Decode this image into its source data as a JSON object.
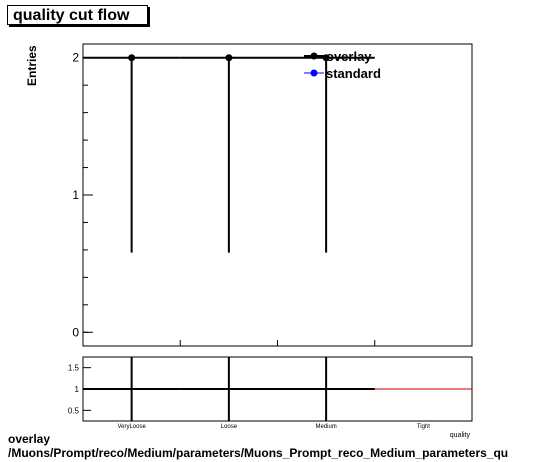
{
  "title": "quality cut flow",
  "ylabel": "Entries",
  "xlabel": "quality",
  "footer": {
    "line1": "overlay",
    "line2": "/Muons/Prompt/reco/Medium/parameters/Muons_Prompt_reco_Medium_parameters_qu"
  },
  "chart_data": [
    {
      "type": "line",
      "panel": "main",
      "categories": [
        "VeryLoose",
        "Loose",
        "Medium",
        "Tight"
      ],
      "series": [
        {
          "name": "overlay",
          "color": "#000000",
          "values": [
            2,
            2,
            2,
            null
          ],
          "error_low": [
            0.58,
            0.58,
            0.58,
            null
          ],
          "error_high": [
            2.0,
            2.0,
            2.0,
            null
          ]
        },
        {
          "name": "standard",
          "color": "#0000ff",
          "values": [
            2,
            2,
            2,
            null
          ]
        }
      ],
      "yticks": [
        0,
        1,
        2
      ],
      "ylim": [
        -0.1,
        2.1
      ],
      "legend": "top-right"
    },
    {
      "type": "line",
      "panel": "ratio",
      "categories": [
        "VeryLoose",
        "Loose",
        "Medium",
        "Tight"
      ],
      "series": [
        {
          "name": "ratio",
          "color": "#000000",
          "values": [
            1,
            1,
            1,
            null
          ]
        }
      ],
      "reference_line": {
        "value": 1,
        "color": "#cc0000"
      },
      "yticks": [
        0.5,
        1,
        1.5
      ],
      "ylim": [
        0.25,
        1.75
      ]
    }
  ]
}
